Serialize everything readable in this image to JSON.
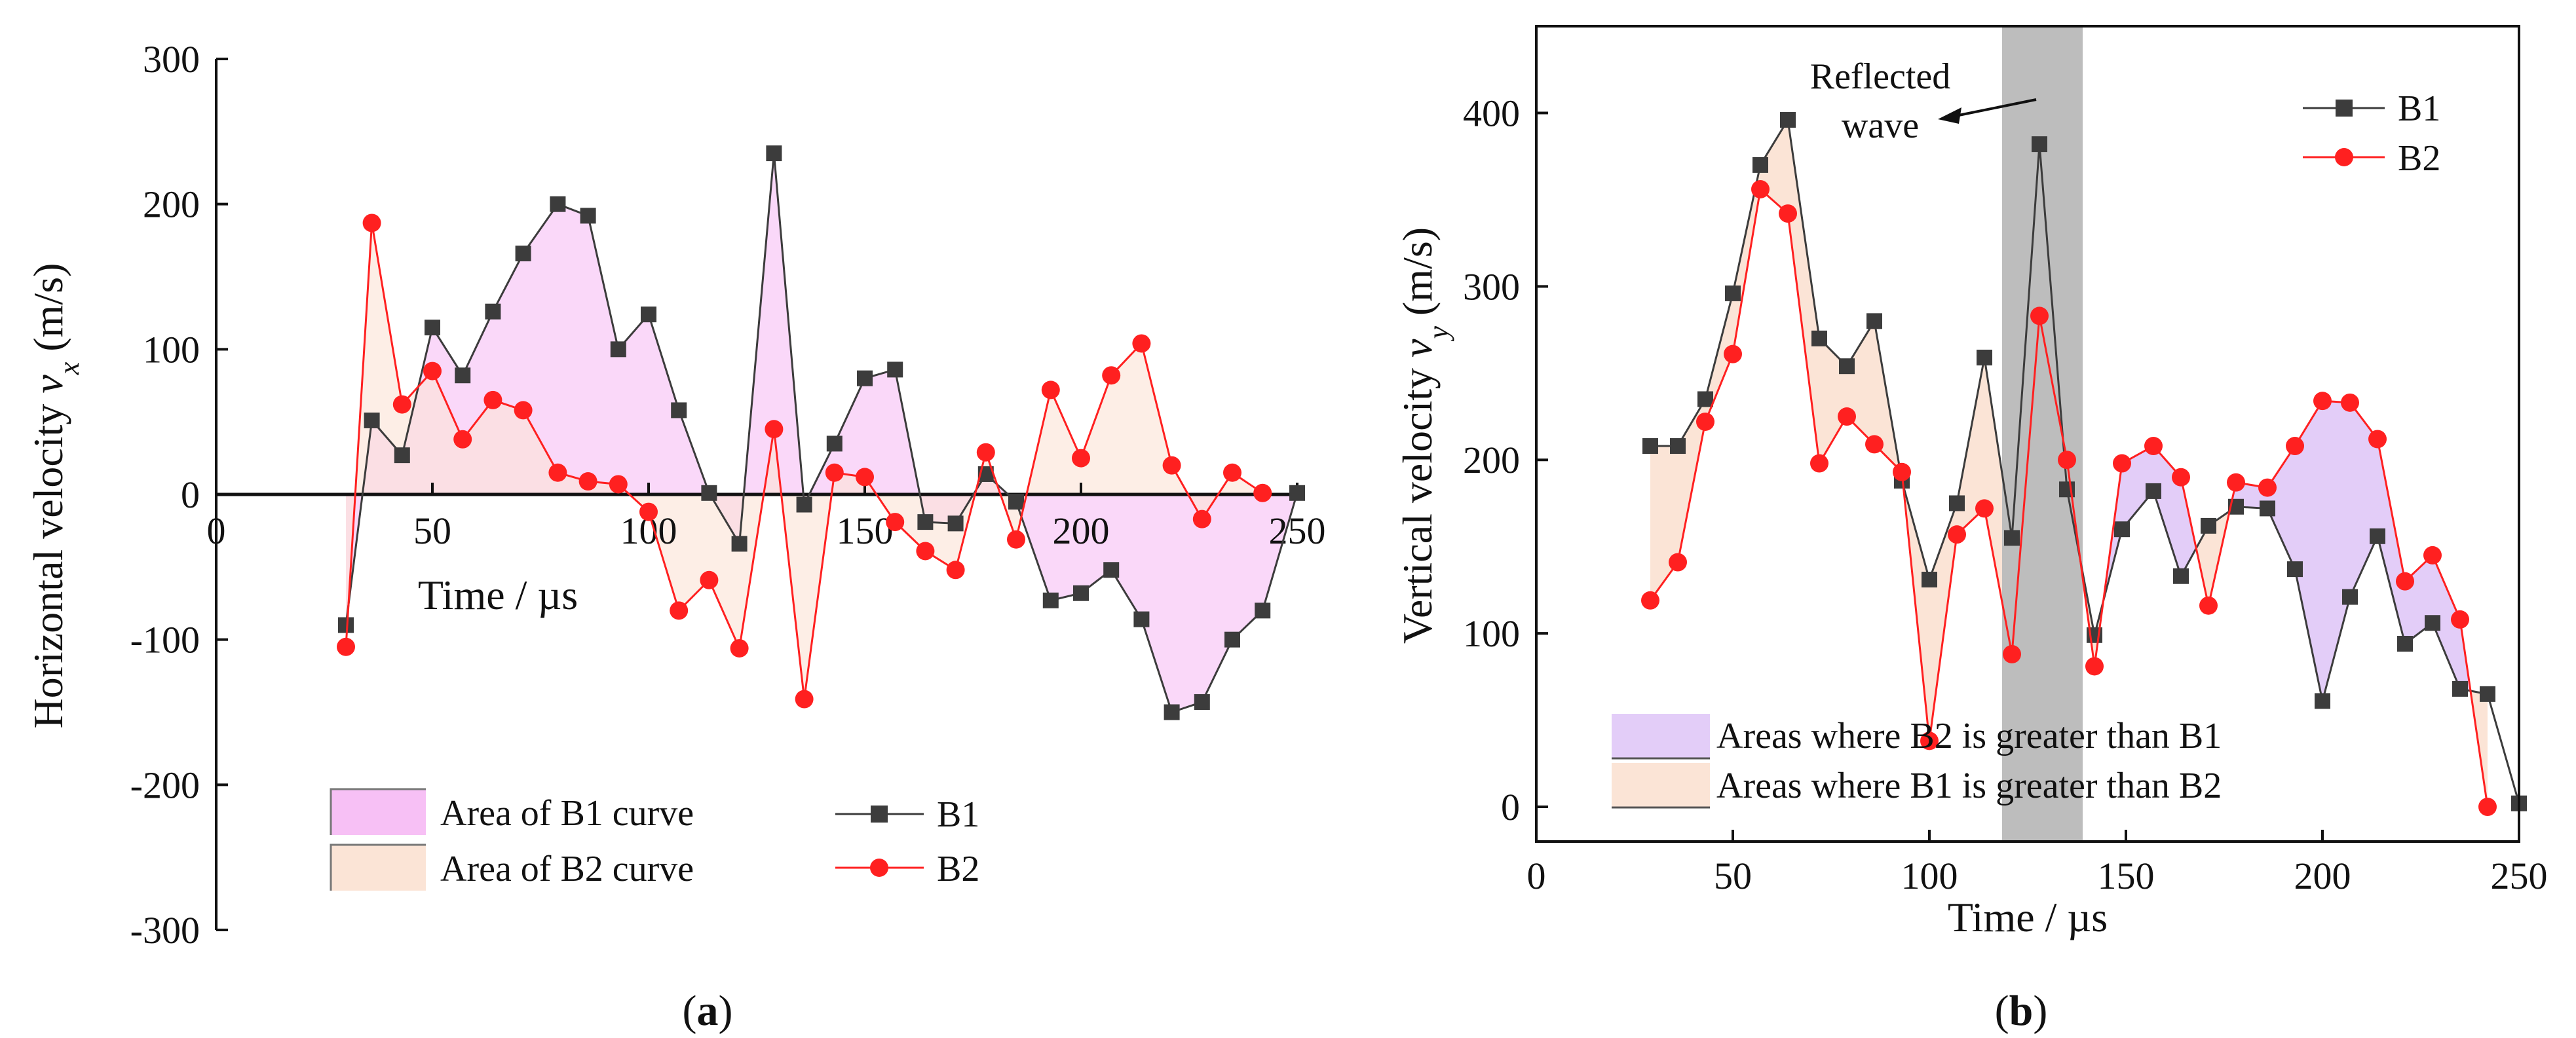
{
  "chart_data": [
    {
      "type": "line",
      "panel_label": "a",
      "xlabel": "Time / µs",
      "ylabel_main": "Horizontal velocity ",
      "ylabel_var": "v",
      "ylabel_sub": "x",
      "ylabel_unit": " (m/s)",
      "xlim": [
        0,
        250
      ],
      "ylim": [
        -300,
        300
      ],
      "xticks": [
        "0",
        "50",
        "100",
        "150",
        "200",
        "250"
      ],
      "yticks": [
        "300",
        "200",
        "100",
        "0",
        "-100",
        "-200",
        "-300"
      ],
      "series": [
        {
          "name": "B1",
          "color": "#3c3c3c",
          "marker": "square",
          "x": [
            30,
            36,
            43,
            50,
            57,
            64,
            71,
            79,
            86,
            93,
            100,
            107,
            114,
            121,
            129,
            136,
            143,
            150,
            157,
            164,
            171,
            178,
            185,
            193,
            200,
            207,
            214,
            221,
            228,
            235,
            242,
            250
          ],
          "y": [
            -90,
            51,
            27,
            115,
            82,
            126,
            166,
            200,
            192,
            100,
            124,
            58,
            1,
            -34,
            235,
            -7,
            35,
            80,
            86,
            -19,
            -20,
            14,
            -5,
            -73,
            -68,
            -52,
            -86,
            -150,
            -143,
            -100,
            -80,
            1
          ]
        },
        {
          "name": "B2",
          "color": "#ff2020",
          "marker": "circle",
          "x": [
            30,
            36,
            43,
            50,
            57,
            64,
            71,
            79,
            86,
            93,
            100,
            107,
            114,
            121,
            129,
            136,
            143,
            150,
            157,
            164,
            171,
            178,
            185,
            193,
            200,
            207,
            214,
            221,
            228,
            235,
            242
          ],
          "y": [
            -105,
            187,
            62,
            85,
            38,
            65,
            58,
            15,
            9,
            7,
            -12,
            -80,
            -59,
            -106,
            45,
            -141,
            15,
            12,
            -19,
            -39,
            -52,
            29,
            -31,
            72,
            25,
            82,
            104,
            20,
            -17,
            15,
            1
          ]
        }
      ],
      "legend": {
        "area_b1": "Area of B1 curve",
        "area_b2": "Area of B2 curve",
        "line_b1": "B1",
        "line_b2": "B2"
      },
      "fill_colors": {
        "b1_area": "#f7c0f5",
        "b2_area": "#fbe4d6"
      }
    },
    {
      "type": "line",
      "panel_label": "b",
      "xlabel": "Time / µs",
      "ylabel_main": "Vertical velocity ",
      "ylabel_var": "v",
      "ylabel_sub": "y",
      "ylabel_unit": " (m/s)",
      "xlim": [
        0,
        250
      ],
      "ylim": [
        -20,
        450
      ],
      "xticks": [
        "0",
        "50",
        "100",
        "150",
        "200",
        "250"
      ],
      "yticks": [
        "400",
        "300",
        "200",
        "100",
        "0"
      ],
      "series": [
        {
          "name": "B1",
          "color": "#3c3c3c",
          "marker": "square",
          "x": [
            29,
            36,
            43,
            50,
            57,
            64,
            72,
            79,
            86,
            93,
            100,
            107,
            114,
            121,
            128,
            135,
            142,
            149,
            157,
            164,
            171,
            178,
            186,
            193,
            200,
            207,
            214,
            221,
            228,
            235,
            242,
            250
          ],
          "y": [
            208,
            208,
            235,
            296,
            370,
            396,
            270,
            254,
            280,
            188,
            131,
            175,
            259,
            155,
            382,
            183,
            99,
            160,
            182,
            133,
            162,
            173,
            172,
            137,
            61,
            121,
            156,
            94,
            106,
            68,
            65,
            2
          ]
        },
        {
          "name": "B2",
          "color": "#ff2020",
          "marker": "circle",
          "x": [
            29,
            36,
            43,
            50,
            57,
            64,
            72,
            79,
            86,
            93,
            100,
            107,
            114,
            121,
            128,
            135,
            142,
            149,
            157,
            164,
            171,
            178,
            186,
            193,
            200,
            207,
            214,
            221,
            228,
            235,
            242
          ],
          "y": [
            119,
            141,
            222,
            261,
            356,
            342,
            198,
            225,
            209,
            193,
            38,
            157,
            172,
            88,
            283,
            200,
            81,
            198,
            208,
            190,
            116,
            187,
            184,
            208,
            234,
            233,
            212,
            130,
            145,
            108,
            0
          ]
        }
      ],
      "legend": {
        "line_b1": "B1",
        "line_b2": "B2",
        "area_b2_gt": "Areas where B2 is greater than B1",
        "area_b1_gt": "Areas where B1 is greater than B2"
      },
      "annotation": {
        "line1": "Reflected",
        "line2": "wave"
      },
      "shaded_region": [
        118.5,
        139
      ],
      "fill_colors": {
        "b2_greater": "#e3cdf8",
        "b1_greater": "#fbe4d6",
        "band": "#bdbdbd"
      }
    }
  ]
}
